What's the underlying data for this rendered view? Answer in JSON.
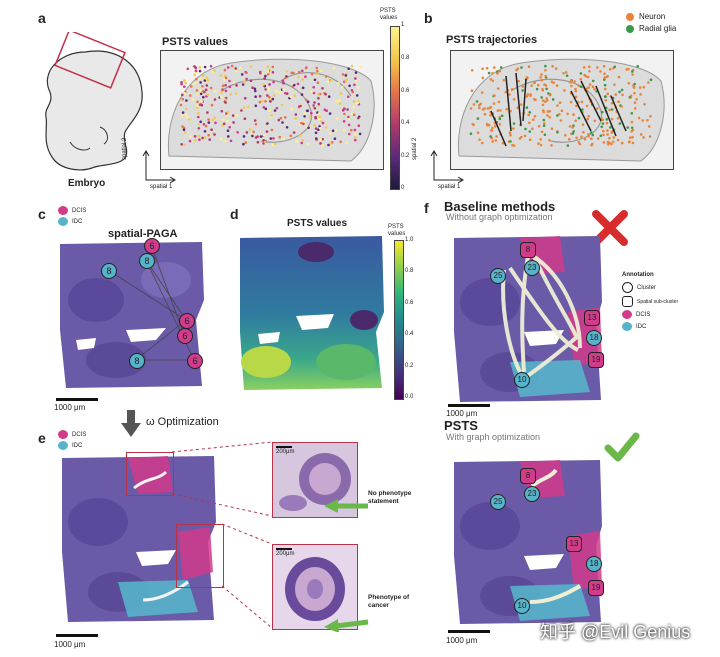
{
  "panels": {
    "a": {
      "label": "a",
      "title": "PSTS values",
      "embryo_label": "Embryo",
      "axis_x": "spatial 1",
      "axis_y": "spatial 2",
      "colorbar": {
        "title_line1": "PSTS",
        "title_line2": "values",
        "ticks": [
          "1",
          "0.8",
          "0.6",
          "0.4",
          "0.2",
          "0"
        ]
      }
    },
    "b": {
      "label": "b",
      "title": "PSTS trajectories",
      "axis_x": "spatial 1",
      "axis_y": "spatial 2",
      "legend": [
        {
          "name": "Neuron",
          "color": "#e8853a"
        },
        {
          "name": "Radial glia",
          "color": "#3a9a4a"
        }
      ]
    },
    "c": {
      "label": "c",
      "title": "spatial-PAGA",
      "legend": [
        {
          "name": "DCIS",
          "color": "#d03b8a"
        },
        {
          "name": "IDC",
          "color": "#56b3c9"
        }
      ],
      "scalebar": "1000 μm",
      "nodes": [
        "6",
        "8",
        "8",
        "6",
        "6",
        "8",
        "6"
      ]
    },
    "d": {
      "label": "d",
      "title": "PSTS values",
      "colorbar": {
        "title_line1": "PSTS",
        "title_line2": "values",
        "ticks": [
          "1.0",
          "0.8",
          "0.6",
          "0.4",
          "0.2",
          "0.0"
        ]
      }
    },
    "e": {
      "label": "e",
      "legend": [
        {
          "name": "DCIS",
          "color": "#d03b8a"
        },
        {
          "name": "IDC",
          "color": "#56b3c9"
        }
      ],
      "scalebar": "1000 μm",
      "inset_scale": "200μm",
      "callouts": [
        "No phenotype statement",
        "Phenotype of cancer"
      ]
    },
    "f": {
      "label": "f",
      "baseline_title": "Baseline methods",
      "baseline_sub": "Without graph optimization",
      "psts_title": "PSTS",
      "psts_sub": "With graph optimization",
      "scalebar": "1000 μm",
      "nodes": [
        "8",
        "23",
        "25",
        "13",
        "18",
        "19",
        "10"
      ],
      "annotation": {
        "title": "Annotation",
        "items": [
          "Cluster",
          "Spatial sub-cluster",
          "DCIS",
          "IDC"
        ]
      }
    }
  },
  "optimization_label": "ω Optimization",
  "watermark": "知乎 @Evil Genius",
  "colors": {
    "dcis": "#d03b8a",
    "idc": "#56b3c9",
    "tissue": "#6a5aa8",
    "arrow": "#eeeed6"
  }
}
